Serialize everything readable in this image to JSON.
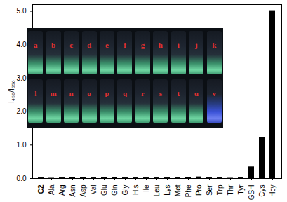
{
  "chart_data": {
    "type": "bar",
    "y_label": "I₄₅₀/I₅₅₀",
    "categories": [
      "C2",
      "Ala",
      "Arg",
      "Asn",
      "Asp",
      "Val",
      "Glu",
      "Gln",
      "Gly",
      "His",
      "Ile",
      "Leu",
      "Lys",
      "Met",
      "Phe",
      "Pro",
      "Ser",
      "Trp",
      "Thr",
      "Tyr",
      "GSH",
      "Cys",
      "Hcy"
    ],
    "values": [
      0.02,
      0.01,
      0.02,
      0.03,
      0.03,
      0.02,
      0.03,
      0.04,
      0.02,
      0.02,
      0.02,
      0.02,
      0.02,
      0.02,
      0.03,
      0.05,
      0.02,
      0.02,
      0.01,
      0.02,
      0.35,
      1.22,
      5.02
    ],
    "color": "#000000",
    "ylim": [
      0,
      5.2
    ],
    "yticks": [
      0,
      1,
      2,
      3,
      4,
      5
    ],
    "grid": false,
    "annotations": [
      [
        "a",
        "b",
        "c",
        "d",
        "e",
        "f",
        "g",
        "h",
        "i",
        "j",
        "k"
      ],
      [
        "l",
        "m",
        "n",
        "o",
        "p",
        "q",
        "r",
        "s",
        "t",
        "u",
        "v"
      ]
    ]
  }
}
